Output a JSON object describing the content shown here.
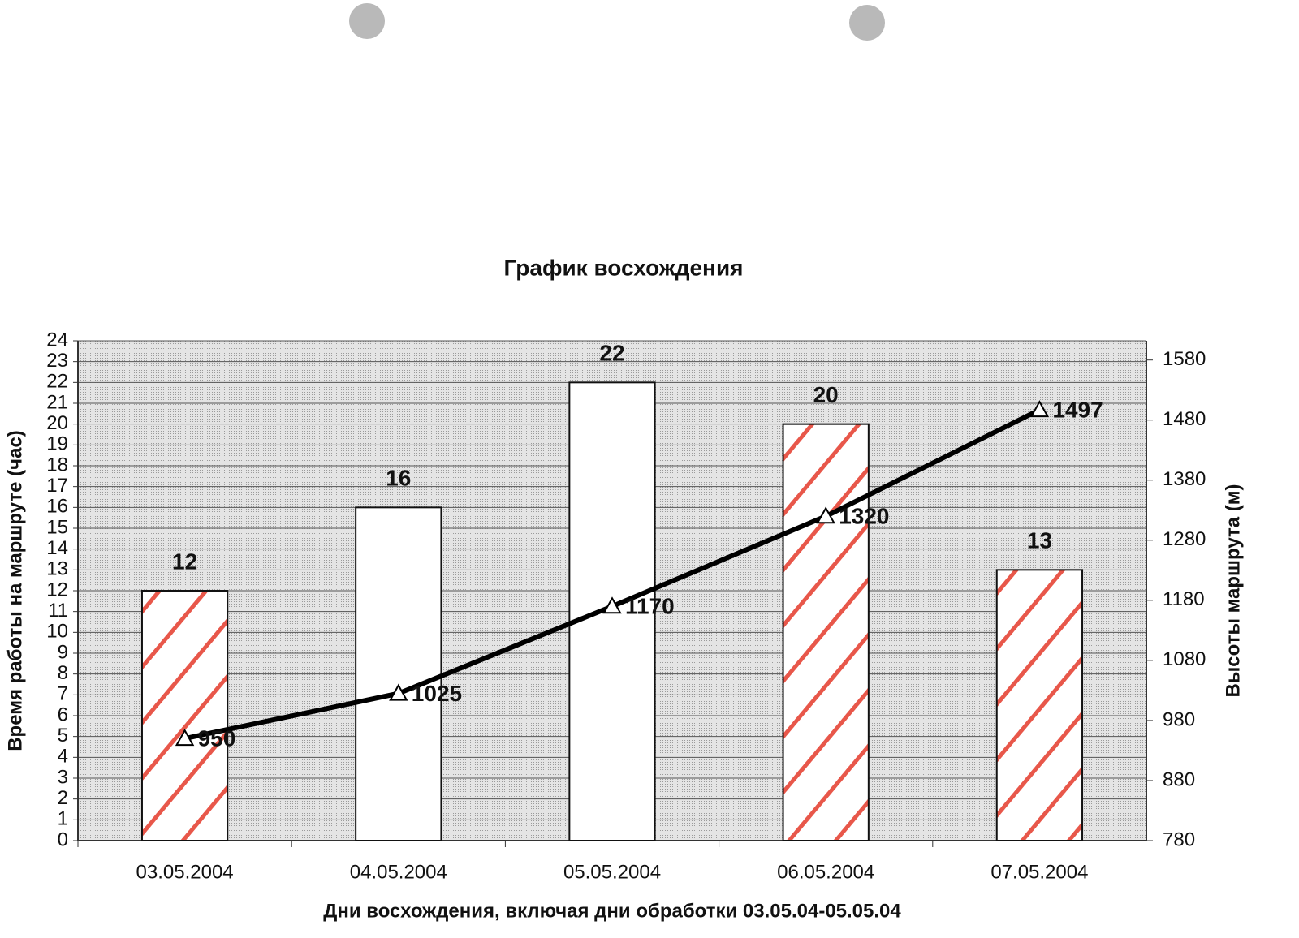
{
  "chart_data": {
    "type": "combo",
    "title": "График восхождения",
    "x_label": "Дни восхождения, включая дни обработки 03.05.04-05.05.04",
    "y_label": "Время работы на маршруте (час)",
    "y2_label": "Высоты маршрута (м)",
    "categories": [
      "03.05.2004",
      "04.05.2004",
      "05.05.2004",
      "06.05.2004",
      "07.05.2004"
    ],
    "series": [
      {
        "type": "bar",
        "color": "#e8574a",
        "patterns": [
          "hatch",
          "none",
          "none",
          "hatch",
          "hatch"
        ],
        "values": [
          12,
          16,
          22,
          20,
          13
        ]
      },
      {
        "type": "line",
        "axis": "y2",
        "color": "#000000",
        "values": [
          950,
          1025,
          1170,
          1320,
          1497
        ]
      }
    ],
    "ylim": [
      0,
      24
    ],
    "yticks": [
      0,
      1,
      2,
      3,
      4,
      5,
      6,
      7,
      8,
      9,
      10,
      11,
      12,
      13,
      14,
      15,
      16,
      17,
      18,
      19,
      20,
      21,
      22,
      23,
      24
    ],
    "y2lim": [
      780,
      1612
    ],
    "y2ticks": [
      780,
      880,
      980,
      1080,
      1180,
      1280,
      1380,
      1480,
      1580
    ],
    "grid": true
  }
}
